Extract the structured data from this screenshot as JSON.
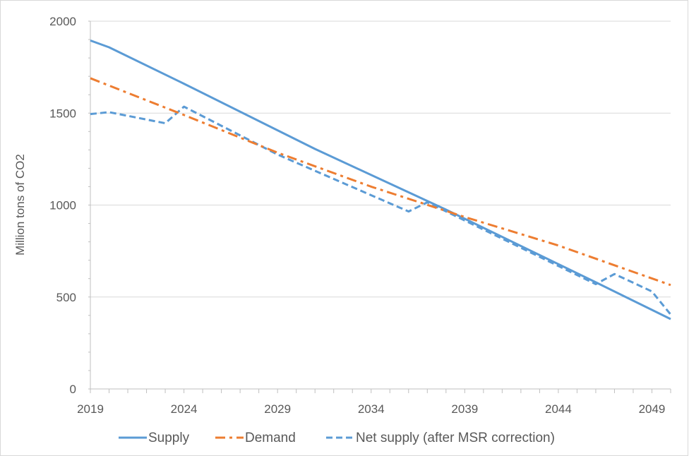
{
  "chart_data": {
    "type": "line",
    "ylabel": "Million tons of CO2",
    "xlim": [
      2019,
      2050
    ],
    "ylim": [
      0,
      2000
    ],
    "x_ticks": [
      2019,
      2024,
      2029,
      2034,
      2039,
      2044,
      2049
    ],
    "y_ticks": [
      0,
      500,
      1000,
      1500,
      2000
    ],
    "grid": "horizontal",
    "legend_position": "bottom",
    "series": [
      {
        "name": "Supply",
        "color": "#5B9BD5",
        "style": "solid",
        "points": [
          [
            2019,
            1895
          ],
          [
            2020,
            1858
          ],
          [
            2024,
            1660
          ],
          [
            2031,
            1305
          ],
          [
            2038,
            975
          ],
          [
            2046,
            580
          ],
          [
            2050,
            380
          ]
        ]
      },
      {
        "name": "Demand",
        "color": "#ED7D31",
        "style": "dashdot",
        "points": [
          [
            2019,
            1690
          ],
          [
            2024,
            1490
          ],
          [
            2029,
            1285
          ],
          [
            2034,
            1100
          ],
          [
            2039,
            935
          ],
          [
            2044,
            780
          ],
          [
            2050,
            565
          ]
        ]
      },
      {
        "name": "Net supply (after MSR correction)",
        "color": "#5B9BD5",
        "style": "dashed",
        "points": [
          [
            2019,
            1495
          ],
          [
            2020,
            1505
          ],
          [
            2023,
            1445
          ],
          [
            2024,
            1535
          ],
          [
            2029,
            1275
          ],
          [
            2036,
            965
          ],
          [
            2037,
            1015
          ],
          [
            2046,
            570
          ],
          [
            2047,
            625
          ],
          [
            2049,
            530
          ],
          [
            2050,
            405
          ]
        ]
      }
    ]
  }
}
